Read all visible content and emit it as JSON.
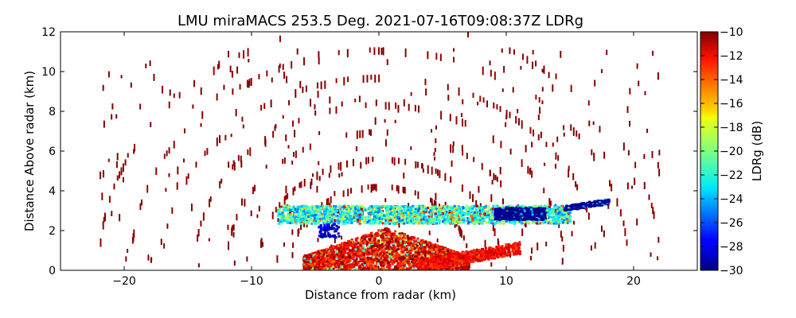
{
  "chart_data": {
    "type": "heatmap",
    "title": "LMU miraMACS 253.5 Deg. 2021-07-16T09:08:37Z  LDRg",
    "xlabel": "Distance from radar (km)",
    "ylabel": "Distance Above radar  (km)",
    "xlim": [
      -25,
      25
    ],
    "ylim": [
      0,
      12
    ],
    "xticks": [
      "−20",
      "−10",
      "0",
      "10",
      "20"
    ],
    "xtick_values": [
      -20,
      -10,
      0,
      10,
      20
    ],
    "yticks": [
      "0",
      "2",
      "4",
      "6",
      "8",
      "10",
      "12"
    ],
    "ytick_values": [
      0,
      2,
      4,
      6,
      8,
      10,
      12
    ],
    "colorbar": {
      "label": "LDRg (dB)",
      "range": [
        -30,
        -10
      ],
      "colormap": "jet",
      "ticks": [
        "−30",
        "−28",
        "−26",
        "−24",
        "−22",
        "−20",
        "−18",
        "−16",
        "−14",
        "−12",
        "−10"
      ],
      "tick_values": [
        -30,
        -28,
        -26,
        -24,
        -22,
        -20,
        -18,
        -16,
        -14,
        -12,
        -10
      ]
    },
    "regions": [
      {
        "name": "low-cloud",
        "x": [
          -6,
          7
        ],
        "y": [
          0,
          2.2
        ],
        "ldr": -12
      },
      {
        "name": "cloud-layer",
        "x": [
          -8,
          15
        ],
        "y": [
          2.4,
          3.3
        ],
        "ldr": -22
      },
      {
        "name": "weak-echo-patch",
        "x": [
          9,
          13
        ],
        "y": [
          2.6,
          3.2
        ],
        "ldr": -29
      },
      {
        "name": "weak-echo-strip",
        "x": [
          14.5,
          18
        ],
        "y": [
          3.0,
          3.5
        ],
        "ldr": -29
      },
      {
        "name": "sidelobe-arcs",
        "x": [
          -23,
          23
        ],
        "y": [
          0.5,
          12
        ],
        "ldr": -10
      }
    ]
  }
}
